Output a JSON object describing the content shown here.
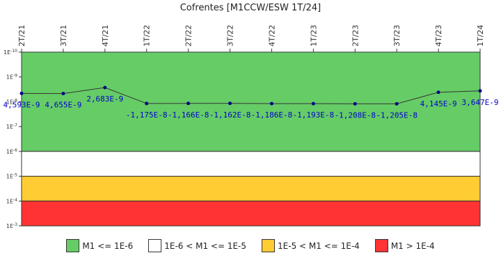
{
  "title": "Cofrentes [M1CCW/ESW 1T/24]",
  "chart_data": {
    "type": "line",
    "title": "Cofrentes [M1CCW/ESW 1T/24]",
    "xlabel": "",
    "ylabel": "",
    "y_scale": "log",
    "y_inverted": true,
    "ylim": [
      1e-10,
      0.001
    ],
    "y_ticks": [
      "1E-10",
      "1E-9",
      "1E-8",
      "1E-7",
      "1E-6",
      "1E-5",
      "1E-4",
      "1E-3"
    ],
    "categories": [
      "2T/21",
      "3T/21",
      "4T/21",
      "1T/22",
      "2T/22",
      "3T/22",
      "4T/22",
      "1T/23",
      "2T/23",
      "3T/23",
      "4T/23",
      "1T/24"
    ],
    "series": [
      {
        "values": [
          4.593e-09,
          4.655e-09,
          2.683e-09,
          -1.175e-08,
          -1.166e-08,
          -1.162e-08,
          -1.186e-08,
          -1.193e-08,
          -1.208e-08,
          -1.205e-08,
          4.145e-09,
          3.647e-09
        ],
        "labels": [
          "4,593E-9",
          "4,655E-9",
          "2,683E-9",
          "-1,175E-8",
          "-1,166E-8",
          "-1,162E-8",
          "-1,186E-8",
          "-1,193E-8",
          "-1,208E-8",
          "-1,205E-8",
          "4,145E-9",
          "3,647E-9"
        ]
      }
    ],
    "bands": [
      {
        "from": 1e-10,
        "to": 1e-06,
        "color": "#66cc66",
        "label": "M1 <= 1E-6"
      },
      {
        "from": 1e-06,
        "to": 1e-05,
        "color": "#ffffff",
        "label": "1E-6 < M1 <= 1E-5"
      },
      {
        "from": 1e-05,
        "to": 0.0001,
        "color": "#ffcc33",
        "label": "1E-5 < M1 <= 1E-4"
      },
      {
        "from": 0.0001,
        "to": 0.001,
        "color": "#ff3333",
        "label": "M1 > 1E-4"
      }
    ],
    "line_color": "#333333",
    "marker_color": "#00008b",
    "label_color": "#0000cc",
    "legend_position": "bottom"
  }
}
